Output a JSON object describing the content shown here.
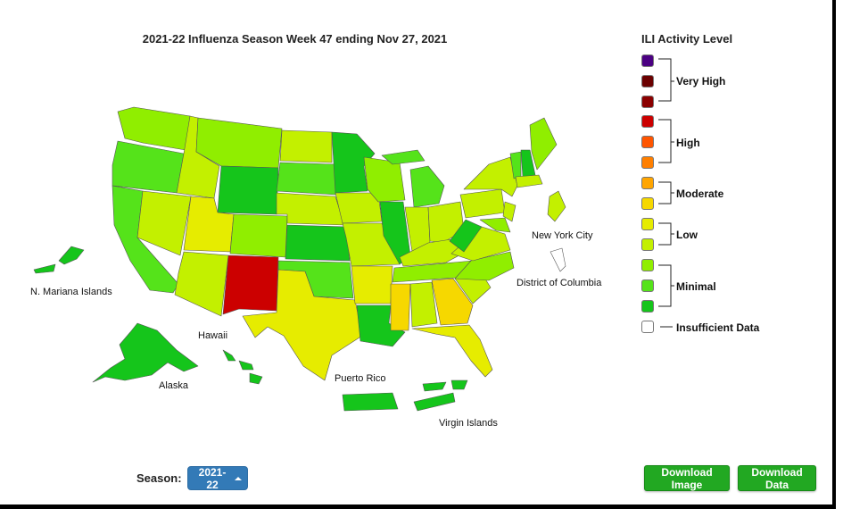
{
  "title": "2021-22 Influenza Season Week 47 ending Nov 27, 2021",
  "legend": {
    "title": "ILI Activity Level",
    "swatches": [
      {
        "color": "#4b0082"
      },
      {
        "color": "#6b0000"
      },
      {
        "color": "#8b0000"
      },
      {
        "color": "#cc0000"
      },
      {
        "color": "#ff5500"
      },
      {
        "color": "#ff7f00"
      },
      {
        "color": "#ffa500"
      },
      {
        "color": "#f6d800"
      },
      {
        "color": "#e6ec00"
      },
      {
        "color": "#c3f000"
      },
      {
        "color": "#90ee00"
      },
      {
        "color": "#55e31a"
      },
      {
        "color": "#15c51b"
      },
      {
        "color": "#ffffff"
      }
    ],
    "groups": [
      "Very High",
      "High",
      "Moderate",
      "Low",
      "Minimal"
    ],
    "insufficient": "Insufficient Data"
  },
  "regions": {
    "mariana": "N. Mariana Islands",
    "hawaii": "Hawaii",
    "alaska": "Alaska",
    "puerto_rico": "Puerto Rico",
    "virgin_islands": "Virgin Islands",
    "nyc": "New York City",
    "dc": "District of Columbia"
  },
  "controls": {
    "season_label": "Season:",
    "season_value": "2021-22",
    "download_image": "Download Image",
    "download_data": "Download Data"
  }
}
